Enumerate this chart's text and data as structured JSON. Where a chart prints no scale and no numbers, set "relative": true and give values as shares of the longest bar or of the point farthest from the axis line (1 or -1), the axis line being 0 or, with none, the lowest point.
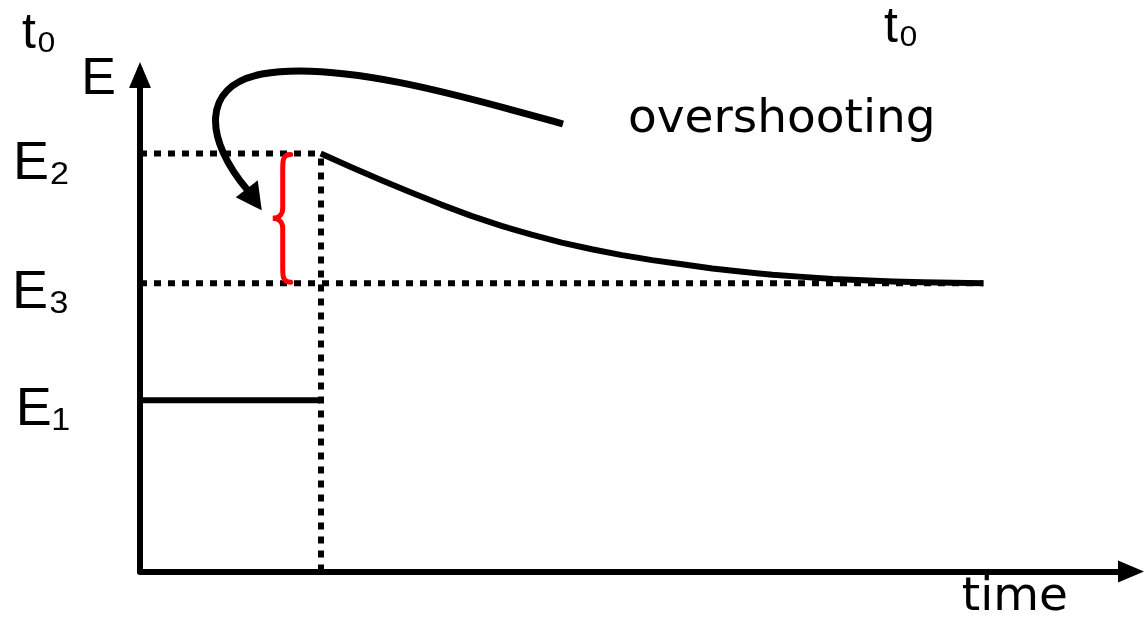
{
  "chart_data": {
    "type": "line",
    "relative": true,
    "xlabel": "time",
    "ylabel": "E",
    "annotations": [
      "t₀",
      "t₀",
      "overshooting"
    ],
    "marker": "none",
    "categories": [
      null,
      null,
      null,
      null,
      null,
      null,
      null,
      null,
      null,
      null,
      null,
      null,
      null,
      null,
      null,
      null,
      null,
      null,
      null,
      null,
      null,
      null,
      null,
      null,
      null,
      null,
      null,
      null,
      null,
      null,
      null,
      null,
      null,
      null
    ],
    "series": [
      {
        "name": "E₂",
        "color": "#000000",
        "line_style": "dotted",
        "values": [
          1,
          1,
          1,
          1,
          1,
          1,
          1,
          null,
          null,
          null,
          null,
          null,
          null,
          null,
          null,
          null,
          null,
          null,
          null,
          null,
          null,
          null,
          null,
          null,
          null,
          null,
          null,
          null,
          null,
          null,
          null,
          null,
          null,
          null
        ]
      },
      {
        "name": "E₃",
        "color": "#000000",
        "line_style": "dotted",
        "values": [
          0.69,
          0.69,
          0.69,
          0.69,
          0.69,
          0.69,
          0.69,
          0.69,
          0.69,
          0.69,
          0.69,
          0.69,
          0.69,
          0.69,
          0.69,
          0.69,
          0.69,
          0.69,
          0.69,
          0.69,
          0.69,
          0.69,
          0.69,
          0.69,
          0.69,
          0.69,
          0.69,
          0.69,
          0.69,
          null,
          null,
          null,
          null,
          null
        ]
      },
      {
        "name": "E₁",
        "color": "#000000",
        "line_style": "solid",
        "values": [
          0.41,
          0.41,
          0.41,
          0.41,
          0.41,
          0.41,
          0.41,
          null,
          null,
          null,
          null,
          null,
          null,
          null,
          null,
          null,
          null,
          null,
          null,
          null,
          null,
          null,
          null,
          null,
          null,
          null,
          null,
          null,
          null,
          null,
          null,
          null,
          null,
          null
        ]
      },
      {
        "color": "#000000",
        "line_style": "solid",
        "values": [
          null,
          null,
          null,
          null,
          null,
          null,
          1,
          0.968,
          0.937,
          0.907,
          0.878,
          0.851,
          0.827,
          0.806,
          0.787,
          0.771,
          0.757,
          0.745,
          0.735,
          0.725,
          0.717,
          0.71,
          0.705,
          0.7,
          0.697,
          0.694,
          0.692,
          0.691,
          0.69,
          null,
          null,
          null,
          null,
          null
        ]
      }
    ]
  }
}
